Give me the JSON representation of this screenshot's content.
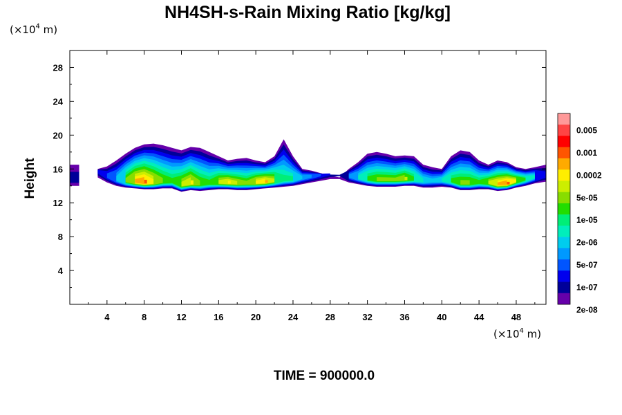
{
  "chart_data": {
    "type": "heatmap",
    "title": "NH4SH-s-Rain Mixing Ratio [kg/kg]",
    "ylabel": "Height",
    "xlabel": "",
    "x_unit": {
      "prefix": "(×10",
      "exp": "4",
      "suffix": " m)"
    },
    "y_unit": {
      "prefix": "(×10",
      "exp": "4",
      "suffix": " m)"
    },
    "xlim": [
      0,
      51.2
    ],
    "ylim": [
      0,
      30
    ],
    "x_ticks": [
      4,
      8,
      12,
      16,
      20,
      24,
      28,
      32,
      36,
      40,
      44,
      48
    ],
    "y_ticks": [
      4,
      8,
      12,
      16,
      20,
      24,
      28
    ],
    "footer": "TIME = 900000.0",
    "legend": {
      "placement": "right",
      "labels": [
        "0.005",
        "0.001",
        "0.0002",
        "5e-05",
        "1e-05",
        "2e-06",
        "5e-07",
        "1e-07",
        "2e-08"
      ],
      "colors": [
        "#ff9999",
        "#ff4444",
        "#ff0000",
        "#ff5500",
        "#ffaa00",
        "#ffee00",
        "#ccee00",
        "#88dd00",
        "#22dd00",
        "#00ee77",
        "#00eebb",
        "#00ccee",
        "#0099ff",
        "#0055ff",
        "#0000ee",
        "#000099",
        "#6600aa"
      ]
    },
    "cloud_profile": {
      "x": [
        0,
        1,
        1.5,
        2.5,
        3,
        4,
        5,
        6,
        7,
        8,
        9,
        10,
        11,
        12,
        13,
        14,
        15,
        16,
        17,
        18,
        19,
        20,
        21,
        22,
        23,
        24,
        25,
        26,
        27,
        28,
        29,
        30,
        31,
        32,
        33,
        34,
        35,
        36,
        37,
        38,
        39,
        40,
        41,
        42,
        43,
        44,
        45,
        46,
        47,
        48,
        49,
        50,
        51.2
      ],
      "top": [
        16.5,
        16.5,
        0,
        0,
        16.0,
        16.3,
        17.0,
        17.8,
        18.5,
        18.9,
        19.0,
        18.8,
        18.5,
        18.2,
        18.6,
        18.5,
        18.0,
        17.5,
        17.0,
        17.2,
        17.3,
        17.0,
        16.8,
        17.5,
        19.5,
        17.5,
        16.0,
        15.8,
        15.5,
        15.2,
        15.0,
        16.0,
        16.8,
        17.8,
        18.0,
        17.8,
        17.5,
        17.6,
        17.5,
        16.5,
        16.2,
        16.0,
        17.5,
        18.2,
        18.0,
        17.0,
        16.5,
        17.0,
        16.8,
        16.2,
        16.0,
        16.2,
        16.5
      ],
      "base": [
        14.0,
        14.0,
        0,
        0,
        15.0,
        14.4,
        14.0,
        13.8,
        13.7,
        13.6,
        13.6,
        13.7,
        13.7,
        13.3,
        13.5,
        13.4,
        13.5,
        13.6,
        13.6,
        13.5,
        13.5,
        13.6,
        13.7,
        13.8,
        13.9,
        14.0,
        14.2,
        14.4,
        14.6,
        14.8,
        14.8,
        14.4,
        14.2,
        14.0,
        13.9,
        13.9,
        13.9,
        14.0,
        14.0,
        13.8,
        13.8,
        13.9,
        13.8,
        13.5,
        13.5,
        13.6,
        13.6,
        13.4,
        13.5,
        13.8,
        14.0,
        14.3,
        14.5
      ],
      "max_level": [
        1,
        1,
        0,
        0,
        2,
        3,
        5,
        9,
        12,
        13,
        11,
        9,
        8,
        10,
        11,
        9,
        8,
        10,
        11,
        10,
        9,
        11,
        12,
        10,
        7,
        7,
        5,
        4,
        3,
        2,
        1,
        4,
        6,
        8,
        9,
        9,
        9,
        10,
        8,
        6,
        5,
        6,
        8,
        9,
        9,
        8,
        10,
        12,
        13,
        11,
        8,
        6,
        2
      ]
    }
  }
}
